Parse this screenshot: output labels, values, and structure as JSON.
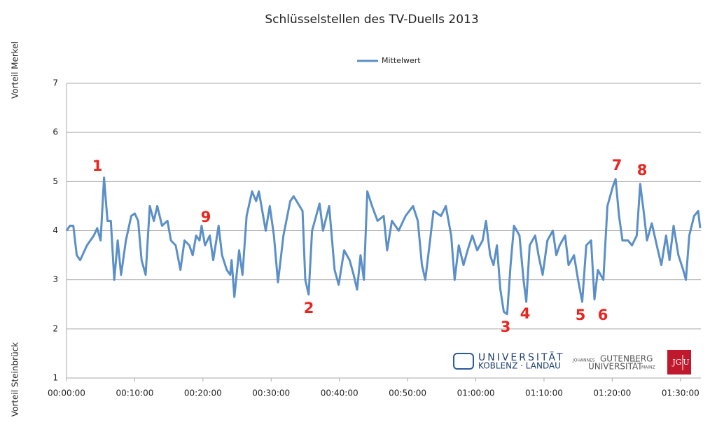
{
  "chart_data": {
    "type": "line",
    "title": "Schlüsselstellen des TV-Duells 2013",
    "y_label_top": "Vorteil Merkel",
    "y_label_bottom": "Vorteil Steinbrück",
    "x": [
      0,
      0.5,
      1,
      1.5,
      2,
      3,
      4,
      4.5,
      5,
      5.5,
      6,
      6.5,
      7,
      7.5,
      8,
      8.7,
      9.5,
      10,
      10.5,
      11,
      11.6,
      12.2,
      12.8,
      13.3,
      14,
      14.8,
      15.3,
      16,
      16.7,
      17.3,
      18,
      18.5,
      19,
      19.5,
      19.8,
      20.3,
      21,
      21.5,
      22.3,
      22.8,
      23.5,
      24,
      24.2,
      24.6,
      25.3,
      25.8,
      26.4,
      27.2,
      27.8,
      28.2,
      29.2,
      29.8,
      30.4,
      31,
      31.8,
      32.8,
      33.3,
      34.6,
      35,
      35.5,
      36,
      37.1,
      37.6,
      38.5,
      39.3,
      39.9,
      40.7,
      41.5,
      42.1,
      42.6,
      43.1,
      43.6,
      44.1,
      44.8,
      45.6,
      46.5,
      47,
      47.7,
      48.7,
      49.7,
      50.8,
      51.5,
      52.1,
      52.6,
      53.3,
      53.8,
      54.9,
      55.6,
      56.4,
      56.9,
      57.5,
      58.2,
      58.8,
      59.5,
      60.2,
      61,
      61.5,
      62.1,
      62.6,
      63.1,
      63.6,
      64.1,
      64.6,
      65.1,
      65.6,
      66.4,
      67,
      67.4,
      67.9,
      68.7,
      69.2,
      69.8,
      70.5,
      71.3,
      71.8,
      72.3,
      73.1,
      73.6,
      74.4,
      75,
      75.6,
      76.2,
      76.9,
      77.4,
      77.9,
      78.7,
      79.3,
      80.1,
      80.5,
      81,
      81.5,
      82.3,
      82.9,
      83.6,
      84.1,
      84.6,
      85.1,
      85.8,
      86.7,
      87.2,
      87.9,
      88.4,
      89,
      89.7,
      90.4,
      90.8,
      91.3,
      92,
      92.6,
      92.9
    ],
    "series": [
      {
        "name": "Mittelwert",
        "color": "#5b8fc7",
        "values": [
          4.0,
          4.1,
          4.1,
          3.5,
          3.4,
          3.7,
          3.9,
          4.05,
          3.8,
          5.08,
          4.2,
          4.2,
          3.0,
          3.8,
          3.1,
          3.8,
          4.3,
          4.35,
          4.2,
          3.4,
          3.1,
          4.5,
          4.2,
          4.5,
          4.1,
          4.2,
          3.8,
          3.7,
          3.2,
          3.8,
          3.7,
          3.5,
          3.9,
          3.8,
          4.1,
          3.7,
          3.9,
          3.4,
          4.1,
          3.5,
          3.2,
          3.1,
          3.4,
          2.65,
          3.6,
          3.1,
          4.3,
          4.8,
          4.6,
          4.8,
          4.0,
          4.5,
          3.9,
          2.95,
          3.9,
          4.6,
          4.7,
          4.4,
          3.0,
          2.7,
          4.0,
          4.55,
          4.0,
          4.5,
          3.2,
          2.9,
          3.6,
          3.4,
          3.1,
          2.8,
          3.5,
          3.0,
          4.8,
          4.5,
          4.2,
          4.3,
          3.6,
          4.2,
          4.0,
          4.3,
          4.5,
          4.2,
          3.3,
          3.0,
          3.8,
          4.4,
          4.3,
          4.5,
          3.9,
          3.0,
          3.7,
          3.3,
          3.6,
          3.9,
          3.6,
          3.8,
          4.2,
          3.5,
          3.3,
          3.7,
          2.8,
          2.35,
          2.3,
          3.3,
          4.1,
          3.9,
          3.0,
          2.55,
          3.7,
          3.9,
          3.5,
          3.1,
          3.8,
          4.0,
          3.5,
          3.7,
          3.9,
          3.3,
          3.5,
          3.0,
          2.55,
          3.7,
          3.8,
          2.6,
          3.2,
          3.0,
          4.5,
          4.9,
          5.05,
          4.3,
          3.8,
          3.8,
          3.7,
          3.9,
          4.95,
          4.4,
          3.8,
          4.15,
          3.6,
          3.3,
          3.9,
          3.4,
          4.1,
          3.5,
          3.2,
          3.0,
          3.9,
          4.3,
          4.4,
          4.05
        ]
      }
    ],
    "xlim": [
      0,
      93
    ],
    "ylim": [
      1,
      7
    ],
    "yticks": [
      1,
      2,
      3,
      4,
      5,
      6,
      7
    ],
    "xticks": [
      {
        "value": 0,
        "label": "00:00:00"
      },
      {
        "value": 10,
        "label": "00:10:00"
      },
      {
        "value": 20,
        "label": "00:20:00"
      },
      {
        "value": 30,
        "label": "00:30:00"
      },
      {
        "value": 40,
        "label": "00:40:00"
      },
      {
        "value": 50,
        "label": "00:50:00"
      },
      {
        "value": 60,
        "label": "01:00:00"
      },
      {
        "value": 70,
        "label": "01:10:00"
      },
      {
        "value": 80,
        "label": "01:20:00"
      },
      {
        "value": 90,
        "label": "01:30:00"
      }
    ],
    "grid": true,
    "legend": "top",
    "annotations": [
      "1",
      "9",
      "2",
      "3",
      "4",
      "5",
      "6",
      "7",
      "8"
    ],
    "annotation_color": "#e8251f",
    "logos": {
      "koblenz_top": "UNIVERSITÄT",
      "koblenz_bottom": "KOBLENZ · LANDAU",
      "mainz_top_small": "JOHANNES",
      "mainz_top": "GUTENBERG",
      "mainz_bottom": "UNIVERSITÄT",
      "mainz_bottom_small": "MAINZ",
      "jgu_left": "JG",
      "jgu_right": "U"
    }
  }
}
